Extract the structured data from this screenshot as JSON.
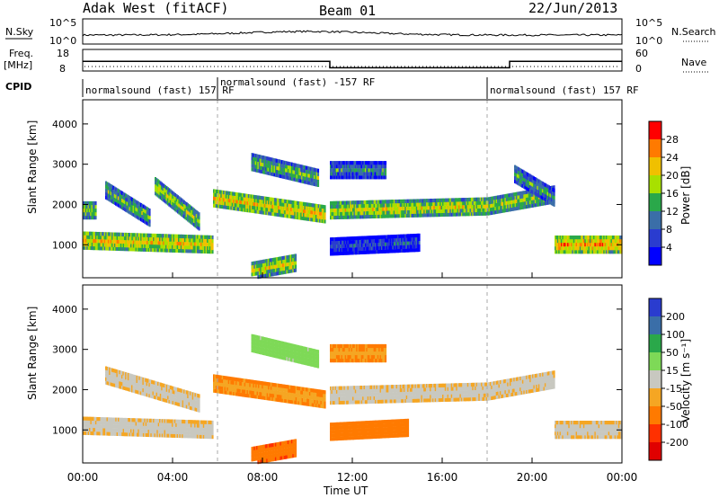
{
  "header": {
    "title": "Adak West (fitACF)",
    "beam": "Beam 01",
    "date": "22/Jun/2013"
  },
  "panels": {
    "nsky_label": "N.Sky",
    "nsearch_label": "N.Search",
    "nsky_ticks": [
      "10^5",
      "10^0"
    ],
    "nsearch_ticks": [
      "10^5",
      "10^0"
    ],
    "freq_label_1": "Freq.",
    "freq_label_2": "[MHz]",
    "freq_ticks": [
      "18",
      "8"
    ],
    "nave_label": "Nave",
    "nave_ticks": [
      "60",
      "0"
    ],
    "cpid_label": "CPID",
    "cpid_segments": [
      {
        "label": "normalsound (fast) 157 RF",
        "start": 0,
        "end": 6
      },
      {
        "label": "normalsound (fast) -157 RF",
        "start": 6,
        "end": 18
      },
      {
        "label": "normalsound (fast) 157 RF",
        "start": 18,
        "end": 24
      }
    ],
    "freq_steps": [
      {
        "start": 0,
        "end": 11,
        "value": 12.5
      },
      {
        "start": 11,
        "end": 19,
        "value": 9.5
      },
      {
        "start": 19,
        "end": 24,
        "value": 12.5
      }
    ]
  },
  "axes": {
    "xlabel": "Time UT",
    "ylabel": "Slant Range [km]",
    "x_ticks": [
      "00:00",
      "04:00",
      "08:00",
      "12:00",
      "16:00",
      "20:00",
      "00:00"
    ],
    "y_ticks": [
      "1000",
      "2000",
      "3000",
      "4000"
    ]
  },
  "power_bar": {
    "label": "Power [dB]",
    "ticks": [
      "28",
      "24",
      "20",
      "16",
      "12",
      "8",
      "4"
    ],
    "colors": [
      "#ff0000",
      "#ff7a00",
      "#f0c000",
      "#a8e000",
      "#2aa84a",
      "#3a6ea8",
      "#2a3ccf",
      "#0000ff"
    ]
  },
  "velocity_bar": {
    "label": "Velocity [m s⁻¹]",
    "ticks": [
      "200",
      "100",
      "50",
      "15",
      "-15",
      "-50",
      "-100",
      "-200"
    ],
    "colors": [
      "#2a3ccf",
      "#3a6ea8",
      "#2aa84a",
      "#7ed957",
      "#c8c8c0",
      "#f5a623",
      "#ff7a00",
      "#ff3000",
      "#e00000"
    ]
  },
  "chart_data": [
    {
      "type": "heatmap",
      "title": "",
      "xlabel": "Time UT",
      "ylabel": "Slant Range [km]",
      "quantity": "Power [dB]",
      "xlim": [
        0,
        24
      ],
      "ylim": [
        180,
        4600
      ],
      "clim": [
        0,
        32
      ],
      "grid": false,
      "echo_bands": [
        {
          "t0": 0.0,
          "t1": 0.6,
          "r0": 1900,
          "r1": 1900,
          "value": 18
        },
        {
          "t0": 0.0,
          "t1": 5.8,
          "r0": 1150,
          "r1": 1050,
          "value": 22
        },
        {
          "t0": 1.0,
          "t1": 3.0,
          "r0": 2400,
          "r1": 1700,
          "value": 16
        },
        {
          "t0": 3.2,
          "t1": 5.2,
          "r0": 2500,
          "r1": 1600,
          "value": 18
        },
        {
          "t0": 5.8,
          "t1": 10.8,
          "r0": 2200,
          "r1": 1800,
          "value": 22
        },
        {
          "t0": 7.5,
          "t1": 10.5,
          "r0": 3100,
          "r1": 2700,
          "value": 16
        },
        {
          "t0": 7.5,
          "t1": 9.5,
          "r0": 400,
          "r1": 600,
          "value": 20
        },
        {
          "t0": 11.0,
          "t1": 18.0,
          "r0": 1900,
          "r1": 2000,
          "value": 20
        },
        {
          "t0": 11.0,
          "t1": 13.5,
          "r0": 2900,
          "r1": 2900,
          "value": 12
        },
        {
          "t0": 11.0,
          "t1": 15.0,
          "r0": 1000,
          "r1": 1100,
          "value": 8
        },
        {
          "t0": 18.0,
          "t1": 21.0,
          "r0": 2000,
          "r1": 2300,
          "value": 18
        },
        {
          "t0": 19.2,
          "t1": 21.0,
          "r0": 2800,
          "r1": 2200,
          "value": 14
        },
        {
          "t0": 21.0,
          "t1": 24.0,
          "r0": 1050,
          "r1": 1050,
          "value": 24
        }
      ]
    },
    {
      "type": "heatmap",
      "title": "",
      "xlabel": "Time UT",
      "ylabel": "Slant Range [km]",
      "quantity": "Velocity [m s⁻¹]",
      "xlim": [
        0,
        24
      ],
      "ylim": [
        180,
        4600
      ],
      "clim": [
        -200,
        200
      ],
      "grid": false,
      "echo_bands": [
        {
          "t0": 0.0,
          "t1": 5.8,
          "r0": 1150,
          "r1": 1050,
          "value": 0
        },
        {
          "t0": 1.0,
          "t1": 5.2,
          "r0": 2400,
          "r1": 1700,
          "value": 0
        },
        {
          "t0": 5.8,
          "t1": 10.8,
          "r0": 2200,
          "r1": 1800,
          "value": -40
        },
        {
          "t0": 7.5,
          "t1": 10.5,
          "r0": 3200,
          "r1": 2800,
          "value": 40
        },
        {
          "t0": 7.5,
          "t1": 9.5,
          "r0": 400,
          "r1": 600,
          "value": -80
        },
        {
          "t0": 11.0,
          "t1": 18.0,
          "r0": 1900,
          "r1": 2000,
          "value": 0
        },
        {
          "t0": 11.0,
          "t1": 13.5,
          "r0": 2950,
          "r1": 2950,
          "value": -40
        },
        {
          "t0": 11.0,
          "t1": 14.5,
          "r0": 1000,
          "r1": 1100,
          "value": -60
        },
        {
          "t0": 18.0,
          "t1": 21.0,
          "r0": 2000,
          "r1": 2300,
          "value": 0
        },
        {
          "t0": 21.0,
          "t1": 24.0,
          "r0": 1050,
          "r1": 1050,
          "value": 0
        }
      ]
    }
  ]
}
